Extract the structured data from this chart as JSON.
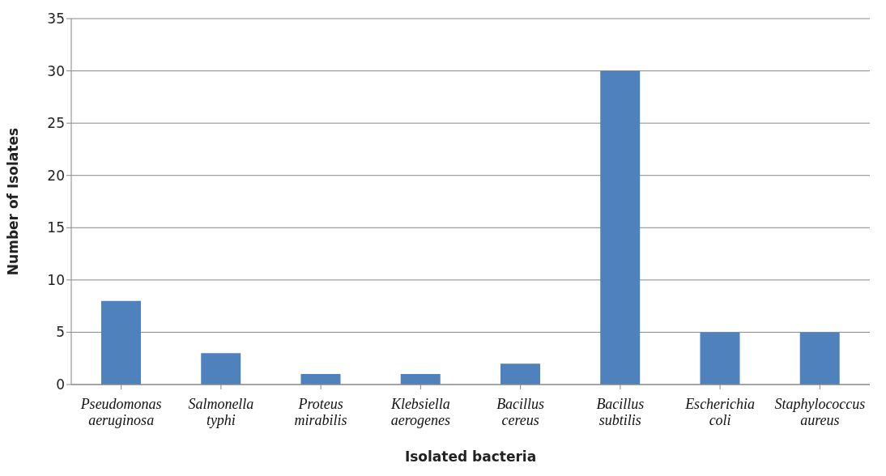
{
  "chart_data": {
    "type": "bar",
    "xlabel": "Isolated  bacteria",
    "ylabel": "Number of Isolates",
    "categories": [
      "Pseudomonas aeruginosa",
      "Salmonella typhi",
      "Proteus mirabilis",
      "Klebsiella aerogenes",
      "Bacillus cereus",
      "Bacillus subtilis",
      "Escherichia coli",
      "Staphylococcus aureus"
    ],
    "values": [
      8,
      3,
      1,
      1,
      2,
      30,
      5,
      5
    ],
    "color": "#4f81bd",
    "ylim": [
      0,
      35
    ],
    "yticks": [
      0,
      5,
      10,
      15,
      20,
      25,
      30,
      35
    ],
    "grid": "y"
  }
}
